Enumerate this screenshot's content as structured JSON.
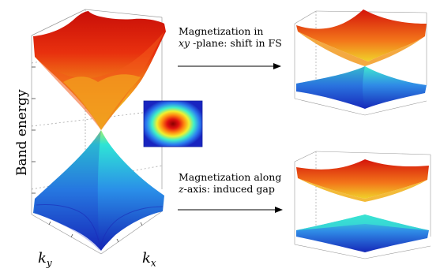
{
  "axes": {
    "ylabel": "Band energy",
    "kx": "k",
    "kx_sub": "x",
    "ky": "k",
    "ky_sub": "y"
  },
  "arrow_top": {
    "line1": "Magnetization in",
    "line2_italic": "xy",
    "line2_rest": " -plane: shift in FS"
  },
  "arrow_bottom": {
    "line1": "Magnetization along",
    "line2_italic": "z",
    "line2_rest": "-axis: induced gap"
  },
  "colors": {
    "red": "#e0180c",
    "orange": "#f37a16",
    "yellow": "#e8e82a",
    "cyan": "#2fe0d4",
    "blue": "#1f3fd8",
    "darkblue": "#1420a8"
  }
}
